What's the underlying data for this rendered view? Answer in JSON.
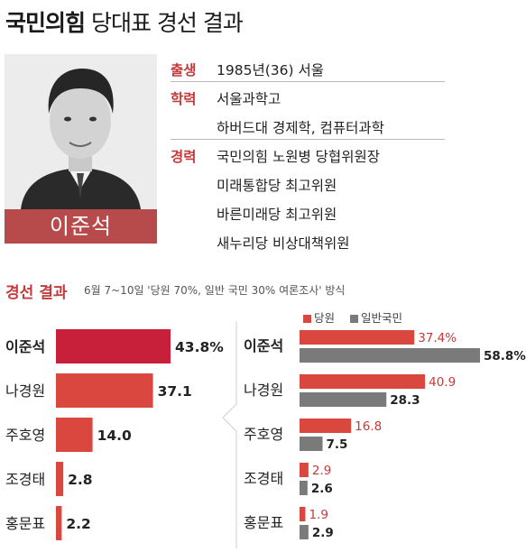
{
  "header": {
    "title_bold": "국민의힘",
    "title_rest": "당대표 경선 결과"
  },
  "profile": {
    "name": "이준석",
    "rows": [
      {
        "label": "출생",
        "values": [
          "1985년(36) 서울"
        ]
      },
      {
        "label": "학력",
        "values": [
          "서울과학고",
          "하버드대 경제학, 컴퓨터과학"
        ]
      },
      {
        "label": "경력",
        "values": [
          "국민의힘 노원병 당협위원장",
          "미래통합당 최고위원",
          "바른미래당 최고위원",
          "새누리당 비상대책위원"
        ]
      }
    ]
  },
  "section": {
    "title": "경선 결과",
    "subtitle": "6월 7~10일 '당원 70%, 일반 국민 30% 여론조사' 방식"
  },
  "legend": {
    "party": "당원",
    "public": "일반국민"
  },
  "colors": {
    "winner": "#c8203a",
    "bar": "#d9473f",
    "public": "#7a7a7a",
    "accent": "#c53a3a"
  },
  "chart_data": [
    {
      "type": "bar",
      "orientation": "horizontal",
      "categories": [
        "이준석",
        "나경원",
        "주호영",
        "조경태",
        "홍문표"
      ],
      "values": [
        43.8,
        37.1,
        14.0,
        2.8,
        2.2
      ],
      "value_labels": [
        "43.8%",
        "37.1",
        "14.0",
        "2.8",
        "2.2"
      ]
    },
    {
      "type": "bar",
      "orientation": "horizontal",
      "categories": [
        "이준석",
        "나경원",
        "주호영",
        "조경태",
        "홍문표"
      ],
      "series": [
        {
          "name": "당원",
          "values": [
            37.4,
            40.9,
            16.8,
            2.9,
            1.9
          ],
          "labels": [
            "37.4%",
            "40.9",
            "16.8",
            "2.9",
            "1.9"
          ]
        },
        {
          "name": "일반국민",
          "values": [
            58.8,
            28.3,
            7.5,
            2.6,
            2.9
          ],
          "labels": [
            "58.8%",
            "28.3",
            "7.5",
            "2.6",
            "2.9"
          ]
        }
      ]
    }
  ]
}
